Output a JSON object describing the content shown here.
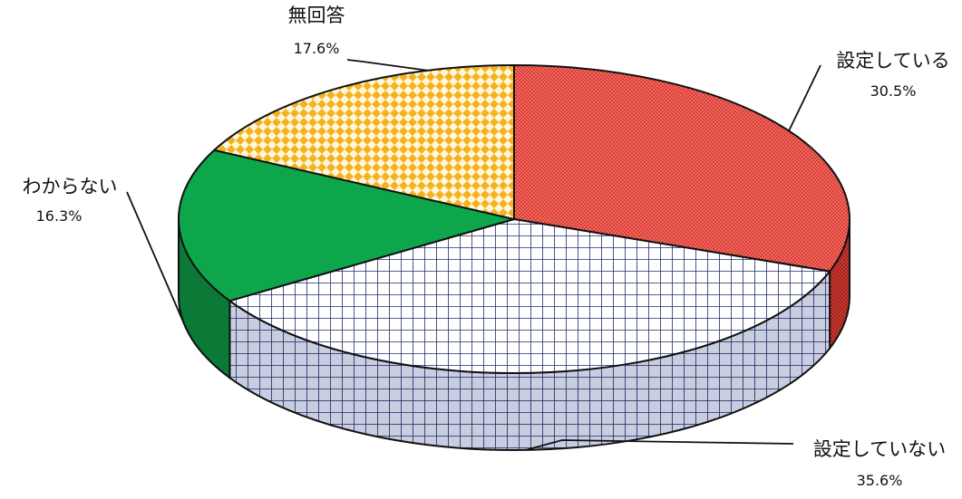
{
  "chart_data": {
    "type": "pie",
    "title": "",
    "style": "3d",
    "slices": [
      {
        "label": "設定している",
        "value": 30.5,
        "display": "30.5%",
        "color": "#e9423c",
        "pattern": "dots"
      },
      {
        "label": "設定していない",
        "value": 35.6,
        "display": "35.6%",
        "color": "#1f2d6e",
        "pattern": "grid"
      },
      {
        "label": "わからない",
        "value": 16.3,
        "display": "16.3%",
        "color": "#0ea64b",
        "pattern": "solid"
      },
      {
        "label": "無回答",
        "value": 17.6,
        "display": "17.6%",
        "color": "#f5b21f",
        "pattern": "checker"
      }
    ]
  }
}
